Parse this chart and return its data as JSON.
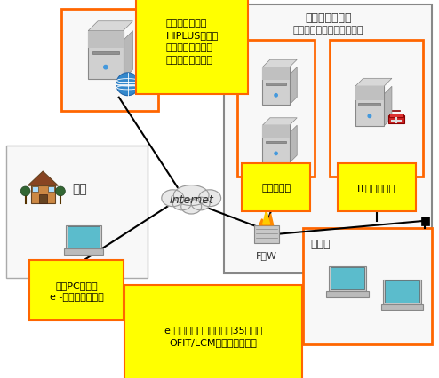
{
  "bg_color": "#ffffff",
  "orange": "#FF6600",
  "yellow": "#FFFF00",
  "black": "#000000",
  "gray_box": "#888888",
  "server_body": "#d4d4d4",
  "server_dark": "#b0b0b0",
  "server_light": "#e8e8e8",
  "cloud_fill": "#e8e8e8",
  "cloud_edge": "#999999",
  "laptop_screen": "#5bbccc",
  "laptop_body": "#cccccc",
  "globe_blue": "#3399cc",
  "toolbox_red": "#cc2222",
  "datacenter_label": "データセンター",
  "datacenter_sublabel": "（京楽銀行電算センター）",
  "hitachi_label1": "日立システムズ",
  "hitachi_label2": "HIPLUSサーバ",
  "hitachi_label3": "クラウド化により",
  "hitachi_label4": "行内にサーバ不要",
  "internet_label": "Internet",
  "home_label": "自宅",
  "home_pc_label": "自宅PCからも\ne -ラーニング可能",
  "auth_server_label": "認証サーバ",
  "it_server_label": "IT管理サーバ",
  "fw_label": "F／W",
  "elearning_label": "e ラーニング用ＰＣ（絉35ー台）\nOFIT/LCMにより保守管理",
  "eigyosho_label": "営業店"
}
